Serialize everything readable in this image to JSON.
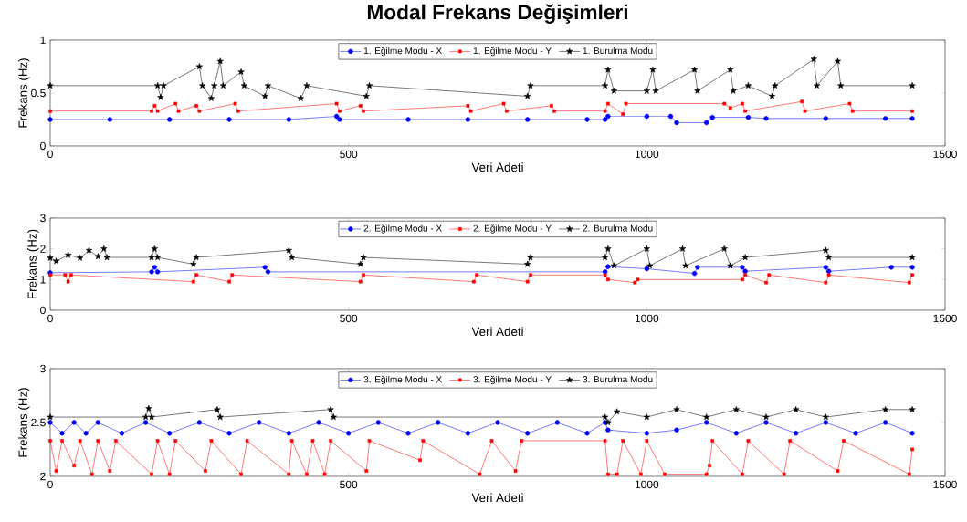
{
  "chart_data": [
    {
      "type": "line",
      "title": "Modal Frekans Değişimleri",
      "xlabel": "Veri Adeti",
      "ylabel": "Frekans (Hz)",
      "xlim": [
        0,
        1500
      ],
      "xticks": [
        0,
        500,
        1000,
        1500
      ],
      "ylim": [
        0,
        1
      ],
      "yticks": [
        0,
        0.5,
        1
      ],
      "legend": "top",
      "series": [
        {
          "name": "1. Eğilme Modu - X",
          "color": "#0000ff",
          "marker": "circle",
          "x": [
            0,
            100,
            200,
            300,
            400,
            480,
            485,
            600,
            700,
            800,
            900,
            930,
            935,
            1000,
            1040,
            1050,
            1100,
            1110,
            1170,
            1200,
            1300,
            1400,
            1445
          ],
          "values": [
            0.25,
            0.25,
            0.25,
            0.25,
            0.25,
            0.28,
            0.25,
            0.25,
            0.25,
            0.25,
            0.25,
            0.25,
            0.28,
            0.28,
            0.28,
            0.22,
            0.22,
            0.27,
            0.27,
            0.26,
            0.26,
            0.26,
            0.26
          ]
        },
        {
          "name": "1. Eğilme Modu - Y",
          "color": "#ff0000",
          "marker": "square",
          "x": [
            0,
            170,
            175,
            180,
            210,
            215,
            245,
            250,
            310,
            315,
            480,
            485,
            520,
            525,
            700,
            705,
            760,
            765,
            840,
            845,
            930,
            935,
            960,
            965,
            1130,
            1140,
            1160,
            1165,
            1260,
            1265,
            1340,
            1345,
            1445
          ],
          "values": [
            0.33,
            0.33,
            0.38,
            0.33,
            0.4,
            0.33,
            0.38,
            0.33,
            0.4,
            0.33,
            0.4,
            0.33,
            0.38,
            0.33,
            0.38,
            0.33,
            0.4,
            0.33,
            0.38,
            0.33,
            0.33,
            0.4,
            0.3,
            0.4,
            0.4,
            0.36,
            0.4,
            0.33,
            0.42,
            0.33,
            0.4,
            0.33,
            0.33
          ]
        },
        {
          "name": "1. Burulma Modu",
          "color": "#000000",
          "marker": "star",
          "x": [
            0,
            180,
            185,
            190,
            250,
            255,
            270,
            275,
            285,
            290,
            320,
            325,
            360,
            365,
            420,
            430,
            530,
            535,
            800,
            805,
            930,
            935,
            945,
            1000,
            1010,
            1015,
            1080,
            1085,
            1140,
            1145,
            1170,
            1210,
            1215,
            1280,
            1285,
            1320,
            1325,
            1445
          ],
          "values": [
            0.57,
            0.57,
            0.46,
            0.57,
            0.75,
            0.57,
            0.45,
            0.57,
            0.8,
            0.57,
            0.7,
            0.57,
            0.47,
            0.57,
            0.45,
            0.57,
            0.47,
            0.57,
            0.47,
            0.57,
            0.57,
            0.72,
            0.52,
            0.52,
            0.72,
            0.52,
            0.72,
            0.52,
            0.72,
            0.52,
            0.57,
            0.47,
            0.57,
            0.82,
            0.57,
            0.8,
            0.57,
            0.57
          ]
        }
      ]
    },
    {
      "type": "line",
      "xlabel": "Veri Adeti",
      "ylabel": "Frekans (Hz)",
      "xlim": [
        0,
        1500
      ],
      "xticks": [
        0,
        500,
        1000,
        1500
      ],
      "ylim": [
        0,
        3
      ],
      "yticks": [
        0,
        1,
        2,
        3
      ],
      "legend": "top",
      "series": [
        {
          "name": "2. Eğilme Modu - X",
          "color": "#0000ff",
          "marker": "circle",
          "x": [
            0,
            170,
            175,
            180,
            360,
            365,
            930,
            935,
            1000,
            1080,
            1085,
            1160,
            1165,
            1300,
            1305,
            1410,
            1445
          ],
          "values": [
            1.22,
            1.25,
            1.4,
            1.25,
            1.4,
            1.25,
            1.25,
            1.42,
            1.35,
            1.2,
            1.4,
            1.4,
            1.27,
            1.4,
            1.27,
            1.4,
            1.4
          ]
        },
        {
          "name": "2. Eğilme Modu - Y",
          "color": "#ff0000",
          "marker": "square",
          "x": [
            0,
            25,
            30,
            35,
            240,
            245,
            300,
            305,
            520,
            525,
            710,
            715,
            800,
            805,
            930,
            935,
            980,
            985,
            1160,
            1165,
            1200,
            1205,
            1300,
            1305,
            1440,
            1445
          ],
          "values": [
            1.15,
            1.15,
            0.93,
            1.15,
            0.93,
            1.15,
            0.93,
            1.15,
            0.93,
            1.15,
            0.93,
            1.15,
            0.93,
            1.15,
            1.15,
            1.0,
            0.9,
            1.0,
            1.0,
            1.15,
            0.9,
            1.15,
            0.9,
            1.15,
            0.9,
            1.15
          ]
        },
        {
          "name": "2. Burulma Modu",
          "color": "#000000",
          "marker": "star",
          "x": [
            0,
            10,
            30,
            50,
            65,
            80,
            90,
            95,
            170,
            175,
            180,
            240,
            245,
            400,
            405,
            520,
            525,
            800,
            805,
            930,
            935,
            945,
            1000,
            1005,
            1060,
            1065,
            1130,
            1140,
            1165,
            1300,
            1305,
            1445
          ],
          "values": [
            1.7,
            1.6,
            1.8,
            1.7,
            1.95,
            1.75,
            2.0,
            1.72,
            1.72,
            2.0,
            1.72,
            1.5,
            1.72,
            1.95,
            1.72,
            1.5,
            1.72,
            1.5,
            1.72,
            1.72,
            2.0,
            1.45,
            2.0,
            1.45,
            2.0,
            1.45,
            2.0,
            1.45,
            1.72,
            1.95,
            1.72,
            1.72
          ]
        }
      ]
    },
    {
      "type": "line",
      "xlabel": "Veri Adeti",
      "ylabel": "Frekans (Hz)",
      "xlim": [
        0,
        1500
      ],
      "xticks": [
        0,
        500,
        1000,
        1500
      ],
      "ylim": [
        2,
        3
      ],
      "yticks": [
        2,
        2.5,
        3
      ],
      "legend": "top",
      "series": [
        {
          "name": "3. Eğilme Modu - X",
          "color": "#0000ff",
          "marker": "circle",
          "x": [
            0,
            20,
            40,
            60,
            80,
            120,
            160,
            200,
            250,
            300,
            350,
            400,
            450,
            500,
            550,
            600,
            650,
            700,
            750,
            800,
            850,
            900,
            930,
            935,
            1000,
            1050,
            1100,
            1150,
            1200,
            1250,
            1300,
            1350,
            1400,
            1445
          ],
          "values": [
            2.5,
            2.4,
            2.5,
            2.4,
            2.5,
            2.4,
            2.5,
            2.4,
            2.5,
            2.4,
            2.5,
            2.4,
            2.5,
            2.4,
            2.5,
            2.4,
            2.5,
            2.4,
            2.5,
            2.4,
            2.5,
            2.4,
            2.5,
            2.43,
            2.4,
            2.43,
            2.5,
            2.4,
            2.5,
            2.4,
            2.5,
            2.4,
            2.5,
            2.4
          ]
        },
        {
          "name": "3. Eğilme Modu - Y",
          "color": "#ff0000",
          "marker": "square",
          "x": [
            0,
            10,
            20,
            40,
            50,
            70,
            80,
            100,
            110,
            170,
            180,
            200,
            210,
            260,
            270,
            320,
            330,
            400,
            405,
            430,
            440,
            460,
            470,
            530,
            535,
            620,
            625,
            720,
            740,
            780,
            790,
            930,
            935,
            950,
            960,
            990,
            1000,
            1030,
            1100,
            1105,
            1110,
            1160,
            1170,
            1230,
            1240,
            1320,
            1330,
            1440,
            1445
          ],
          "values": [
            2.33,
            2.05,
            2.33,
            2.1,
            2.33,
            2.02,
            2.33,
            2.05,
            2.33,
            2.02,
            2.33,
            2.02,
            2.33,
            2.05,
            2.33,
            2.02,
            2.33,
            2.02,
            2.33,
            2.02,
            2.33,
            2.02,
            2.33,
            2.05,
            2.33,
            2.15,
            2.33,
            2.02,
            2.33,
            2.05,
            2.33,
            2.33,
            2.02,
            2.02,
            2.33,
            2.02,
            2.33,
            2.02,
            2.02,
            2.1,
            2.33,
            2.02,
            2.33,
            2.02,
            2.33,
            2.05,
            2.33,
            2.02,
            2.25
          ]
        },
        {
          "name": "3. Burulma Modu",
          "color": "#000000",
          "marker": "star",
          "x": [
            0,
            160,
            165,
            170,
            280,
            285,
            470,
            475,
            930,
            935,
            950,
            1000,
            1050,
            1100,
            1150,
            1200,
            1250,
            1300,
            1400,
            1445
          ],
          "values": [
            2.55,
            2.55,
            2.63,
            2.55,
            2.62,
            2.55,
            2.62,
            2.55,
            2.55,
            2.5,
            2.6,
            2.55,
            2.62,
            2.55,
            2.62,
            2.55,
            2.62,
            2.55,
            2.62,
            2.62
          ]
        }
      ]
    }
  ]
}
